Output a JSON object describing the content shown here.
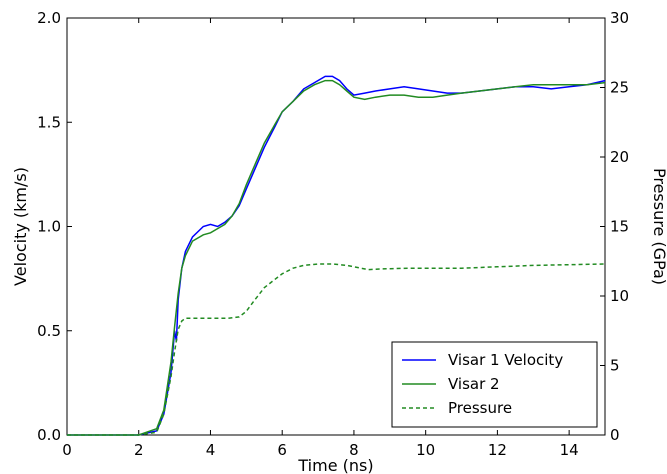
{
  "chart_data": {
    "type": "line",
    "xlabel": "Time (ns)",
    "ylabel": "Velocity (km/s)",
    "y2label": "Pressure (GPa)",
    "xlim": [
      0,
      15
    ],
    "ylim": [
      0,
      2.0
    ],
    "y2lim": [
      0,
      30
    ],
    "xticks": [
      0,
      2,
      4,
      6,
      8,
      10,
      12,
      14
    ],
    "xtick_labels": [
      "0",
      "2",
      "4",
      "6",
      "8",
      "10",
      "12",
      "14"
    ],
    "yticks": [
      0,
      0.5,
      1.0,
      1.5,
      2.0
    ],
    "ytick_labels": [
      "0.0",
      "0.5",
      "1.0",
      "1.5",
      "2.0"
    ],
    "y2ticks": [
      0,
      5,
      10,
      15,
      20,
      25,
      30
    ],
    "y2tick_labels": [
      "0",
      "5",
      "10",
      "15",
      "20",
      "25",
      "30"
    ],
    "grid": false,
    "legend_position": "lower-right",
    "series": [
      {
        "name": "Visar 1 Velocity",
        "color": "#0000ff",
        "style": "solid",
        "axis": "left",
        "x": [
          0,
          2.0,
          2.5,
          2.7,
          2.9,
          3.0,
          3.05,
          3.1,
          3.2,
          3.3,
          3.5,
          3.8,
          4.0,
          4.2,
          4.4,
          4.6,
          4.8,
          5.0,
          5.2,
          5.5,
          5.8,
          6.0,
          6.3,
          6.6,
          6.9,
          7.2,
          7.4,
          7.6,
          7.8,
          8.0,
          8.3,
          8.6,
          9.0,
          9.4,
          9.8,
          10.2,
          10.6,
          11.0,
          11.5,
          12.0,
          12.5,
          13.0,
          13.5,
          14.0,
          14.5,
          15.0
        ],
        "y": [
          0,
          0,
          0.02,
          0.1,
          0.3,
          0.5,
          0.45,
          0.65,
          0.8,
          0.88,
          0.95,
          1.0,
          1.01,
          1.0,
          1.02,
          1.05,
          1.1,
          1.18,
          1.26,
          1.38,
          1.48,
          1.55,
          1.6,
          1.66,
          1.69,
          1.72,
          1.72,
          1.7,
          1.66,
          1.63,
          1.64,
          1.65,
          1.66,
          1.67,
          1.66,
          1.65,
          1.64,
          1.64,
          1.65,
          1.66,
          1.67,
          1.67,
          1.66,
          1.67,
          1.68,
          1.7
        ]
      },
      {
        "name": "Visar 2",
        "color": "#228b22",
        "style": "solid",
        "axis": "left",
        "x": [
          0,
          2.0,
          2.5,
          2.7,
          2.9,
          3.0,
          3.1,
          3.2,
          3.3,
          3.5,
          3.8,
          4.0,
          4.2,
          4.4,
          4.6,
          4.8,
          5.0,
          5.2,
          5.5,
          5.8,
          6.0,
          6.3,
          6.6,
          6.9,
          7.2,
          7.4,
          7.6,
          7.8,
          8.0,
          8.3,
          8.6,
          9.0,
          9.4,
          9.8,
          10.2,
          10.6,
          11.0,
          11.5,
          12.0,
          12.5,
          13.0,
          13.5,
          14.0,
          14.5,
          15.0
        ],
        "y": [
          0,
          0,
          0.03,
          0.12,
          0.35,
          0.52,
          0.68,
          0.8,
          0.86,
          0.93,
          0.96,
          0.97,
          0.99,
          1.01,
          1.05,
          1.11,
          1.2,
          1.28,
          1.4,
          1.49,
          1.55,
          1.6,
          1.65,
          1.68,
          1.7,
          1.7,
          1.68,
          1.65,
          1.62,
          1.61,
          1.62,
          1.63,
          1.63,
          1.62,
          1.62,
          1.63,
          1.64,
          1.65,
          1.66,
          1.67,
          1.68,
          1.68,
          1.68,
          1.68,
          1.69
        ]
      },
      {
        "name": "Pressure",
        "color": "#228b22",
        "style": "dashed",
        "axis": "right",
        "x": [
          0,
          2.0,
          2.5,
          2.7,
          2.9,
          3.0,
          3.1,
          3.2,
          3.3,
          3.6,
          4.0,
          4.5,
          4.8,
          5.0,
          5.2,
          5.5,
          5.8,
          6.0,
          6.3,
          6.6,
          7.0,
          7.4,
          7.8,
          8.0,
          8.4,
          8.8,
          9.5,
          10.5,
          11.0,
          12.0,
          13.0,
          14.0,
          15.0
        ],
        "y": [
          0,
          0,
          0.2,
          1.5,
          4.2,
          6.0,
          7.6,
          8.2,
          8.4,
          8.4,
          8.4,
          8.4,
          8.5,
          8.9,
          9.6,
          10.6,
          11.2,
          11.6,
          12.0,
          12.2,
          12.3,
          12.3,
          12.2,
          12.1,
          11.9,
          11.95,
          12.0,
          12.0,
          12.0,
          12.1,
          12.2,
          12.25,
          12.3
        ]
      }
    ]
  }
}
